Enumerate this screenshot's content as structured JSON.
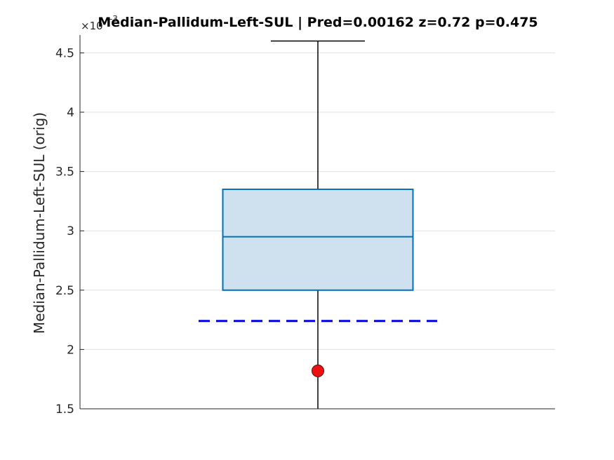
{
  "chart_data": {
    "type": "box",
    "title": "Median-Pallidum-Left-SUL  |  Pred=0.00162  z=0.72  p=0.475",
    "ylabel": "Median-Pallidum-Left-SUL (orig)",
    "y_exponent_label": "×10",
    "y_exponent_power": "-3",
    "ylim": [
      1.5,
      4.65
    ],
    "yticks": [
      1.5,
      2,
      2.5,
      3,
      3.5,
      4,
      4.5
    ],
    "ytick_labels": [
      "1.5",
      "2",
      "2.5",
      "3",
      "3.5",
      "4",
      "4.5"
    ],
    "grid": true,
    "box": {
      "whisker_low": 1.5,
      "q1": 2.5,
      "median": 2.95,
      "q3": 3.35,
      "whisker_high": 4.6
    },
    "reference_line": {
      "value": 2.24,
      "style": "dashed"
    },
    "subject_point": {
      "value": 1.82
    },
    "colors": {
      "box_edge": "#0072BD",
      "box_fill": "#cfe1ef",
      "reference_line": "#0000ee",
      "subject_point": "#ee1111",
      "axis": "#262626",
      "grid": "#e0e0e0"
    }
  }
}
